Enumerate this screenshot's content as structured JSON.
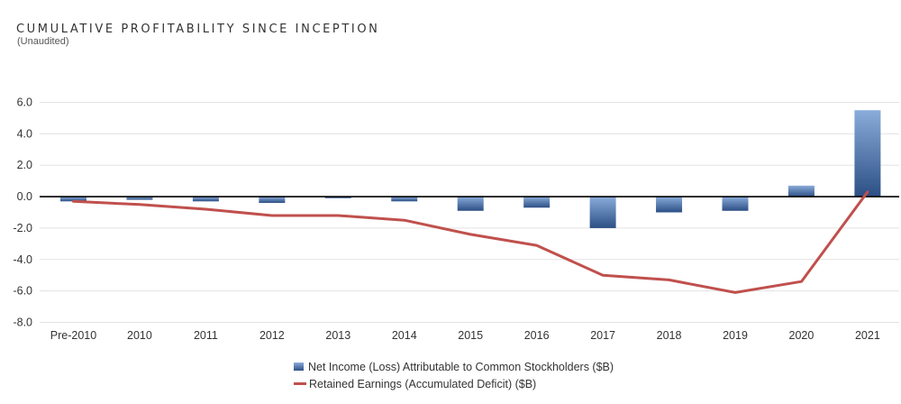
{
  "header": {
    "title": "CUMULATIVE PROFITABILITY SINCE INCEPTION",
    "subtitle": "(Unaudited)"
  },
  "colors": {
    "bar_top": "#8aacda",
    "bar_bottom": "#2c4f85",
    "line": "#c0504d",
    "grid": "#e3e3e3",
    "zero_line": "#000000"
  },
  "chart_data": {
    "type": "bar",
    "categories": [
      "Pre-2010",
      "2010",
      "2011",
      "2012",
      "2013",
      "2014",
      "2015",
      "2016",
      "2017",
      "2018",
      "2019",
      "2020",
      "2021"
    ],
    "series": [
      {
        "name": "Net Income (Loss) Attributable to Common Stockholders ($B)",
        "type": "bar",
        "values": [
          -0.3,
          -0.2,
          -0.3,
          -0.4,
          -0.1,
          -0.3,
          -0.9,
          -0.7,
          -2.0,
          -1.0,
          -0.9,
          0.7,
          5.5
        ]
      },
      {
        "name": "Retained Earnings (Accumulated Deficit) ($B)",
        "type": "line",
        "values": [
          -0.3,
          -0.5,
          -0.8,
          -1.2,
          -1.2,
          -1.5,
          -2.4,
          -3.1,
          -5.0,
          -5.3,
          -6.1,
          -5.4,
          0.3
        ]
      }
    ],
    "yticks": [
      "6.0",
      "4.0",
      "2.0",
      "0.0",
      "-2.0",
      "-4.0",
      "-6.0",
      "-8.0"
    ],
    "ylim": [
      -8,
      6
    ],
    "grid": true,
    "legend_position": "bottom-center"
  }
}
